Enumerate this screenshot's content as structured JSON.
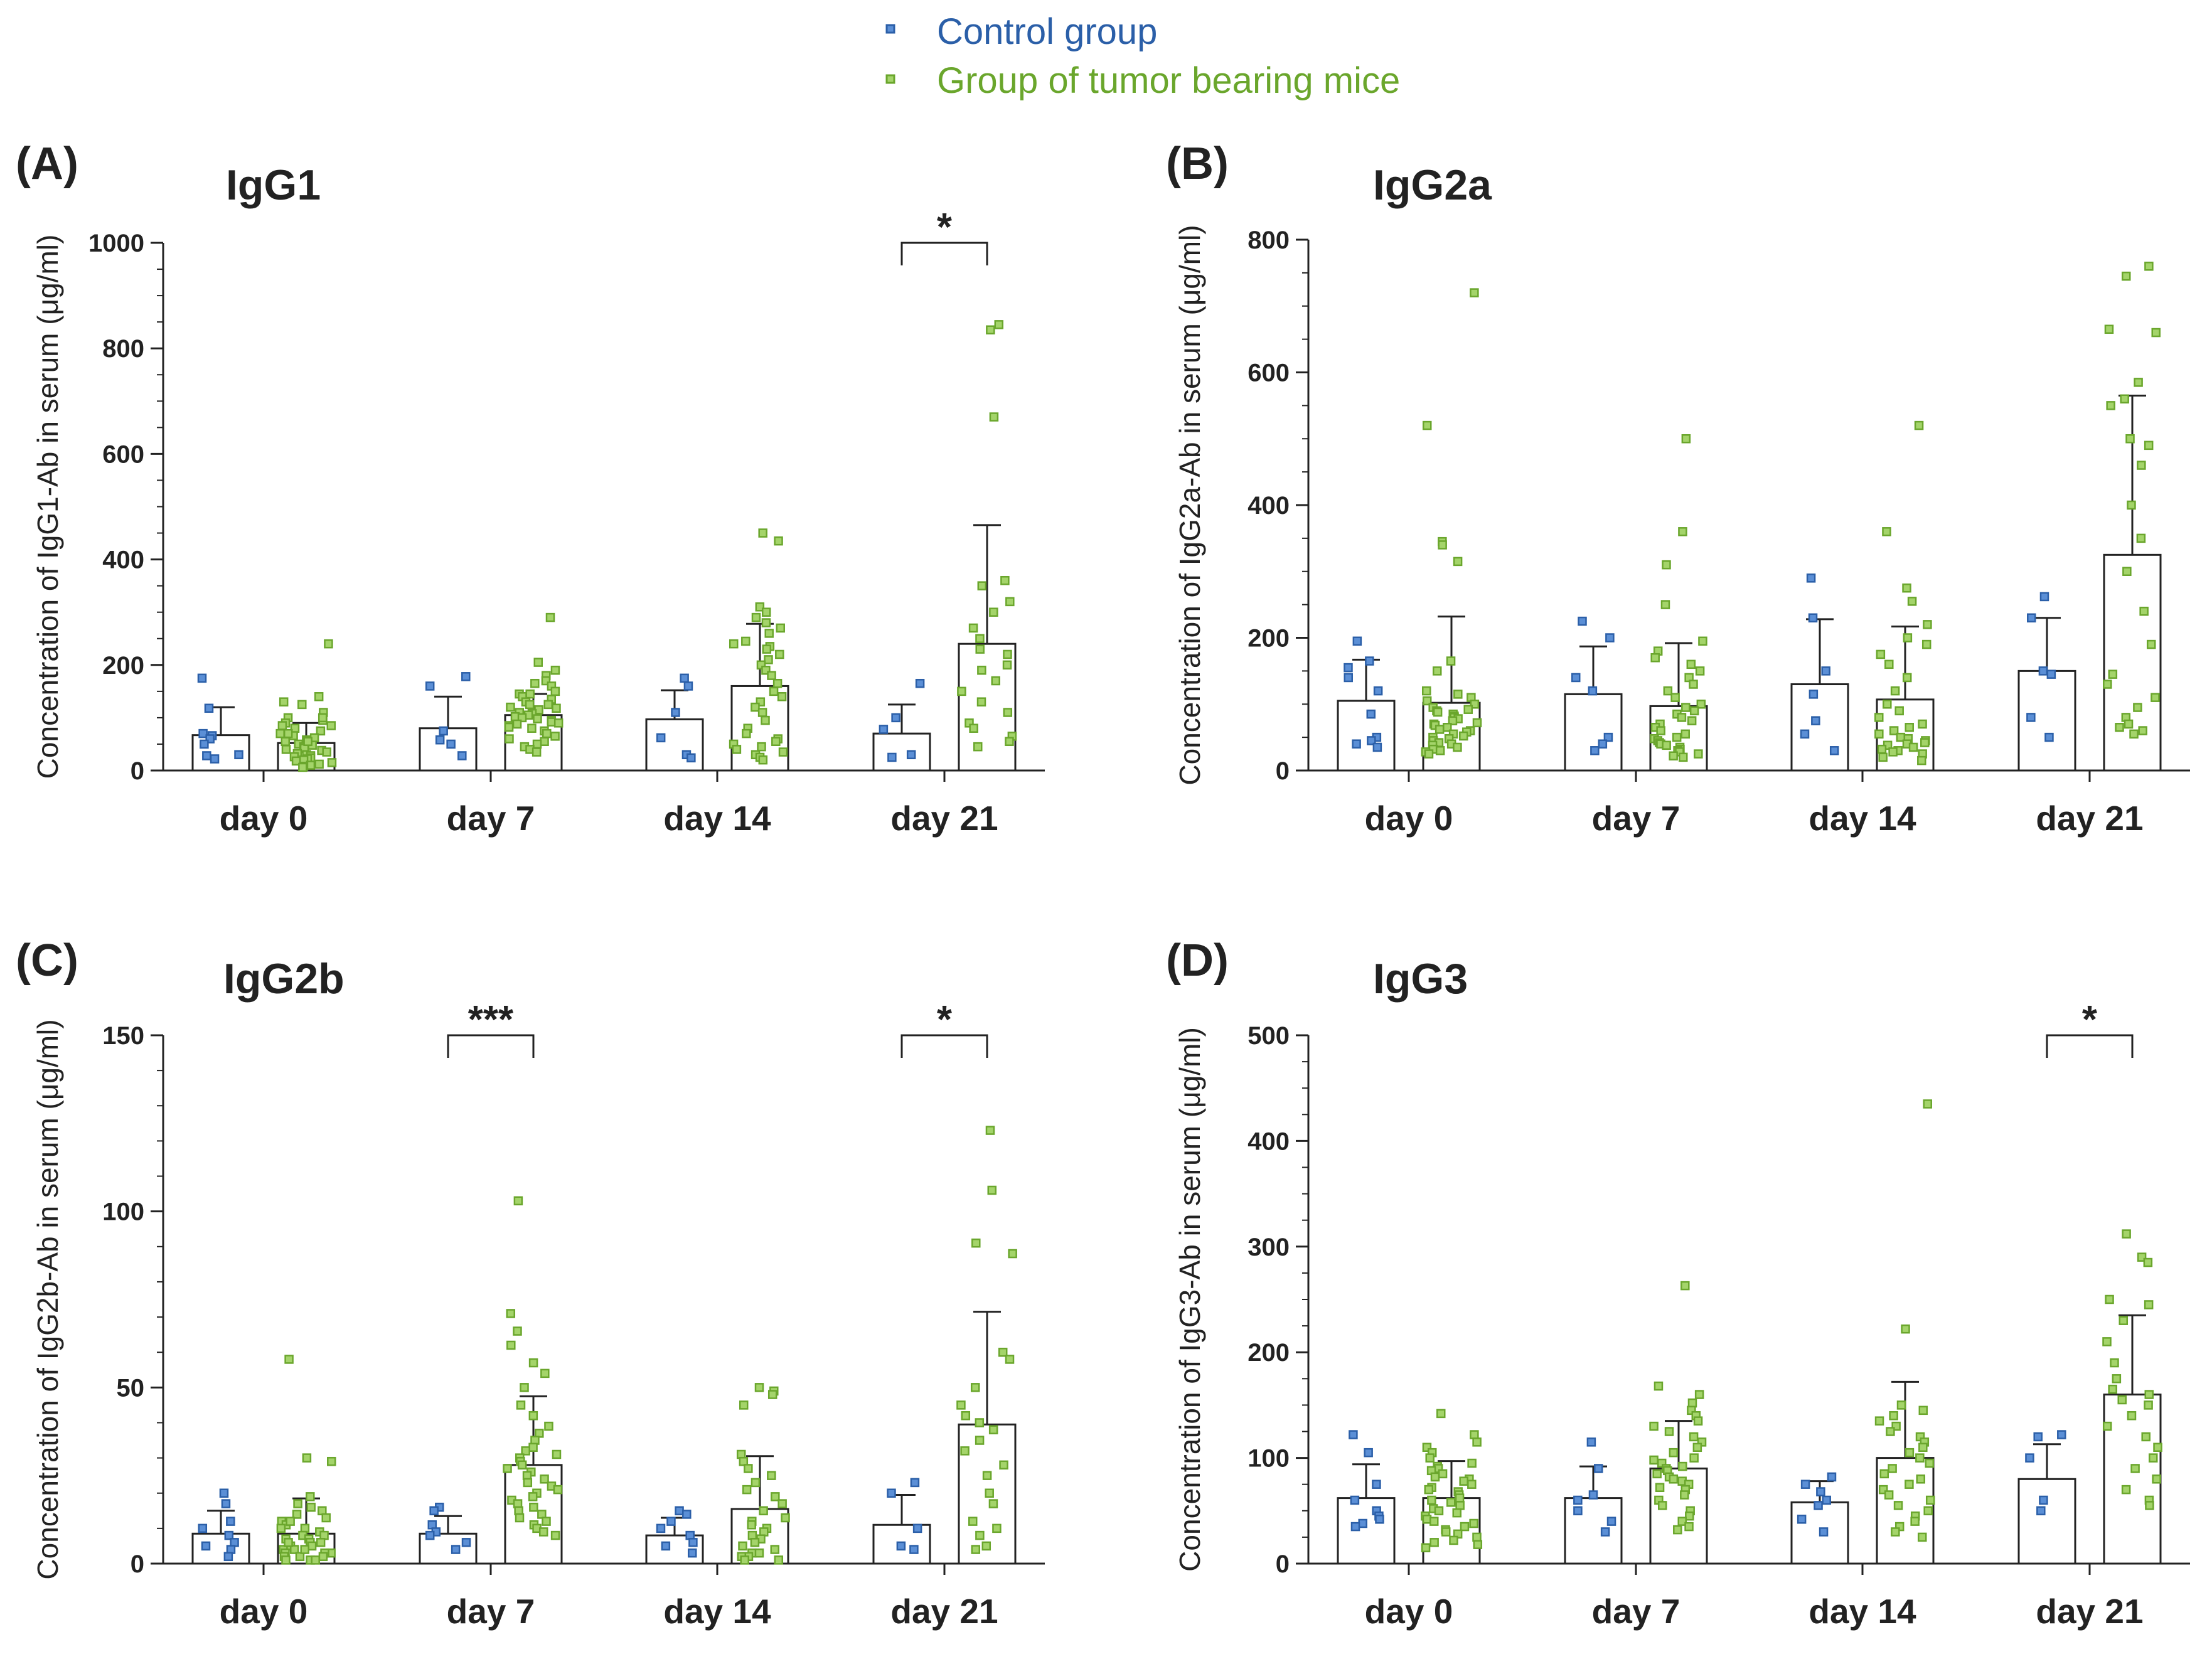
{
  "legend": {
    "control": {
      "label": "Control group",
      "color": "#2b5fa8",
      "fill": "#5b8fd6"
    },
    "tumor": {
      "label": "Group of tumor bearing mice",
      "color": "#6aa62c",
      "fill": "#a4d46a"
    }
  },
  "chart_data": [
    {
      "type": "bar",
      "panel_label": "(A)",
      "title": "IgG1",
      "ylabel": "Concentration of IgG1-Ab in serum (μg/ml)",
      "categories": [
        "day 0",
        "day 7",
        "day 14",
        "day 21"
      ],
      "ylim": [
        0,
        1000
      ],
      "yticks": [
        0,
        200,
        400,
        600,
        800,
        1000
      ],
      "minor_tick_step": 50,
      "series": [
        {
          "name": "Control group",
          "values": [
            67,
            80,
            97,
            70
          ],
          "err": [
            53,
            60,
            55,
            55
          ],
          "points": [
            [
              175,
              118,
              70,
              66,
              60,
              50,
              30,
              28,
              22
            ],
            [
              178,
              160,
              75,
              58,
              50,
              28
            ],
            [
              175,
              160,
              110,
              62,
              30,
              24
            ],
            [
              165,
              100,
              78,
              30,
              25
            ]
          ]
        },
        {
          "name": "Group of tumor bearing mice",
          "values": [
            52,
            105,
            160,
            240
          ],
          "err": [
            38,
            40,
            118,
            225
          ],
          "points": [
            [
              240,
              140,
              130,
              125,
              110,
              100,
              95,
              90,
              85,
              80,
              75,
              70,
              66,
              62,
              58,
              55,
              50,
              48,
              45,
              42,
              40,
              38,
              35,
              32,
              30,
              28,
              26,
              24,
              22,
              20,
              18,
              15,
              12,
              10,
              8,
              6,
              100,
              85,
              70,
              55
            ],
            [
              290,
              205,
              190,
              180,
              170,
              165,
              160,
              150,
              145,
              140,
              135,
              130,
              125,
              120,
              118,
              115,
              110,
              108,
              105,
              102,
              100,
              98,
              95,
              92,
              90,
              88,
              85,
              82,
              80,
              75,
              70,
              65,
              60,
              55,
              50,
              45,
              40,
              35,
              145,
              125
            ],
            [
              450,
              435,
              310,
              300,
              290,
              280,
              270,
              260,
              245,
              240,
              235,
              230,
              220,
              210,
              200,
              190,
              180,
              165,
              150,
              140,
              130,
              120,
              110,
              95,
              80,
              70,
              60,
              55,
              50,
              45,
              40,
              35,
              30,
              25,
              20
            ],
            [
              845,
              835,
              670,
              360,
              350,
              320,
              300,
              270,
              250,
              230,
              220,
              200,
              190,
              170,
              150,
              130,
              110,
              90,
              80,
              65,
              55,
              45
            ]
          ]
        }
      ],
      "significance": [
        {
          "category": "day 21",
          "label": "*",
          "y": 1000
        }
      ]
    },
    {
      "type": "bar",
      "panel_label": "(B)",
      "title": "IgG2a",
      "ylabel": "Concentration of IgG2a-Ab in serum (μg/ml)",
      "categories": [
        "day 0",
        "day 7",
        "day 14",
        "day 21"
      ],
      "ylim": [
        0,
        800
      ],
      "yticks": [
        0,
        200,
        400,
        600,
        800
      ],
      "minor_tick_step": 50,
      "series": [
        {
          "name": "Control group",
          "values": [
            105,
            115,
            130,
            150
          ],
          "err": [
            62,
            72,
            98,
            80
          ],
          "points": [
            [
              195,
              165,
              155,
              140,
              120,
              85,
              50,
              45,
              40,
              35
            ],
            [
              225,
              200,
              140,
              120,
              50,
              40,
              30
            ],
            [
              290,
              230,
              150,
              115,
              75,
              55,
              30
            ],
            [
              262,
              230,
              150,
              145,
              80,
              50
            ]
          ]
        },
        {
          "name": "Group of tumor bearing mice",
          "values": [
            102,
            97,
            107,
            325
          ],
          "err": [
            130,
            95,
            110,
            240
          ],
          "points": [
            [
              720,
              520,
              345,
              340,
              315,
              165,
              150,
              120,
              115,
              110,
              105,
              100,
              95,
              92,
              90,
              88,
              85,
              82,
              80,
              78,
              75,
              72,
              70,
              68,
              65,
              62,
              60,
              58,
              55,
              52,
              50,
              48,
              45,
              42,
              40,
              38,
              35,
              32,
              30,
              28,
              25
            ],
            [
              500,
              360,
              310,
              250,
              195,
              180,
              170,
              160,
              150,
              140,
              130,
              120,
              110,
              100,
              95,
              90,
              85,
              80,
              75,
              70,
              65,
              60,
              55,
              50,
              48,
              45,
              42,
              40,
              38,
              35,
              32,
              30,
              28,
              25,
              22,
              20
            ],
            [
              520,
              360,
              275,
              255,
              220,
              200,
              190,
              175,
              160,
              140,
              120,
              100,
              90,
              80,
              70,
              65,
              60,
              55,
              50,
              48,
              45,
              42,
              40,
              38,
              35,
              32,
              30,
              28,
              25,
              20,
              15
            ],
            [
              760,
              745,
              665,
              660,
              585,
              560,
              550,
              500,
              490,
              460,
              400,
              350,
              300,
              240,
              190,
              145,
              130,
              110,
              95,
              80,
              70,
              65,
              60,
              55
            ]
          ]
        }
      ],
      "significance": []
    },
    {
      "type": "bar",
      "panel_label": "(C)",
      "title": "IgG2b",
      "ylabel": "Concentration of IgG2b-Ab in serum (μg/ml)",
      "categories": [
        "day 0",
        "day 7",
        "day 14",
        "day 21"
      ],
      "ylim": [
        0,
        150
      ],
      "yticks": [
        0,
        50,
        100,
        150
      ],
      "minor_tick_step": 10,
      "series": [
        {
          "name": "Control group",
          "values": [
            8.5,
            8.5,
            8,
            11
          ],
          "err": [
            6.5,
            5,
            5,
            8.5
          ],
          "points": [
            [
              20,
              17,
              12,
              10,
              8,
              6,
              5,
              4,
              2
            ],
            [
              16,
              15,
              11,
              9,
              8,
              6,
              4
            ],
            [
              15,
              14,
              12,
              10,
              8,
              6,
              5,
              3
            ],
            [
              23,
              20,
              10,
              5,
              4
            ]
          ]
        },
        {
          "name": "Group of tumor bearing mice",
          "values": [
            8.5,
            28,
            15.5,
            39.5
          ],
          "err": [
            10,
            19.5,
            15,
            32
          ],
          "points": [
            [
              58,
              30,
              29,
              19,
              17,
              16,
              15,
              14,
              13,
              12,
              11,
              10,
              9,
              8,
              8,
              7,
              7,
              6,
              6,
              5,
              5,
              4,
              4,
              3,
              3,
              3,
              2,
              2,
              2,
              1,
              1,
              1,
              10,
              12,
              6,
              4
            ],
            [
              103,
              71,
              66,
              62,
              57,
              54,
              50,
              45,
              42,
              39,
              37,
              35,
              33,
              32,
              31,
              30,
              29,
              28,
              27,
              26,
              25,
              24,
              23,
              22,
              21,
              20,
              19,
              18,
              17,
              16,
              15,
              14,
              13,
              12,
              11,
              10,
              9,
              8
            ],
            [
              50,
              49,
              48,
              45,
              31,
              29,
              27,
              25,
              23,
              21,
              19,
              17,
              15,
              13,
              12,
              11,
              10,
              9,
              8,
              7,
              6,
              5,
              4,
              3,
              3,
              2,
              2,
              1,
              1
            ],
            [
              123,
              106,
              91,
              88,
              60,
              58,
              50,
              45,
              42,
              40,
              38,
              35,
              32,
              28,
              25,
              20,
              17,
              12,
              10,
              8,
              5,
              4
            ]
          ]
        }
      ],
      "significance": [
        {
          "category": "day 7",
          "label": "***",
          "y": 150
        },
        {
          "category": "day 21",
          "label": "*",
          "y": 150
        }
      ]
    },
    {
      "type": "bar",
      "panel_label": "(D)",
      "title": "IgG3",
      "ylabel": "Concentration of IgG3-Ab in serum (μg/ml)",
      "categories": [
        "day 0",
        "day 7",
        "day 14",
        "day 21"
      ],
      "ylim": [
        0,
        500
      ],
      "yticks": [
        0,
        100,
        200,
        300,
        400,
        500
      ],
      "minor_tick_step": 25,
      "series": [
        {
          "name": "Control group",
          "values": [
            62,
            62,
            58,
            80
          ],
          "err": [
            32,
            30,
            20,
            33
          ],
          "points": [
            [
              122,
              105,
              75,
              60,
              50,
              45,
              42,
              38,
              35
            ],
            [
              115,
              90,
              65,
              60,
              50,
              40,
              30
            ],
            [
              82,
              75,
              68,
              60,
              55,
              42,
              30
            ],
            [
              122,
              120,
              100,
              60,
              50
            ]
          ]
        },
        {
          "name": "Group of tumor bearing mice",
          "values": [
            62,
            90,
            100,
            160
          ],
          "err": [
            35,
            45,
            72,
            75
          ],
          "points": [
            [
              142,
              122,
              115,
              110,
              105,
              100,
              95,
              92,
              90,
              88,
              85,
              82,
              80,
              78,
              75,
              72,
              70,
              68,
              65,
              62,
              60,
              58,
              55,
              52,
              50,
              48,
              45,
              42,
              40,
              38,
              35,
              32,
              30,
              28,
              25,
              22,
              20,
              18,
              15
            ],
            [
              263,
              168,
              160,
              152,
              145,
              140,
              135,
              130,
              125,
              120,
              115,
              110,
              105,
              100,
              98,
              95,
              92,
              90,
              88,
              85,
              82,
              80,
              78,
              75,
              72,
              70,
              65,
              60,
              55,
              50,
              45,
              40,
              35,
              32
            ],
            [
              435,
              222,
              150,
              145,
              140,
              135,
              130,
              125,
              120,
              115,
              110,
              105,
              100,
              95,
              90,
              85,
              80,
              75,
              70,
              65,
              60,
              55,
              50,
              45,
              40,
              35,
              30,
              25
            ],
            [
              312,
              290,
              285,
              250,
              245,
              230,
              210,
              190,
              175,
              165,
              160,
              155,
              150,
              140,
              130,
              120,
              110,
              100,
              90,
              80,
              70,
              60,
              55
            ]
          ]
        }
      ],
      "significance": [
        {
          "category": "day 21",
          "label": "*",
          "y": 500
        }
      ]
    }
  ]
}
